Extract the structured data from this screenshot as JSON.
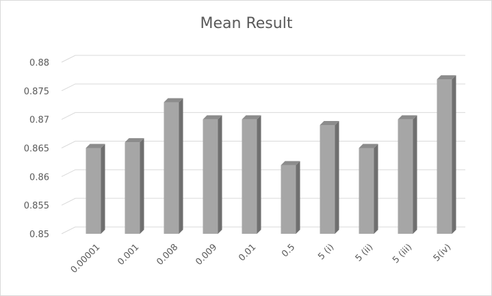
{
  "chart_data": {
    "type": "bar",
    "title": "Mean Result",
    "xlabel": "",
    "ylabel": "",
    "categories": [
      "0.00001",
      "0.001",
      "0.008",
      "0.009",
      "0.01",
      "0.5",
      "5 (i)",
      "5 (ii)",
      "5 (iii)",
      "5(iv)"
    ],
    "values": [
      0.865,
      0.866,
      0.873,
      0.87,
      0.87,
      0.862,
      0.869,
      0.865,
      0.87,
      0.877
    ],
    "ylim": [
      0.85,
      0.88
    ],
    "yticks": [
      "0.85",
      "0.855",
      "0.86",
      "0.865",
      "0.87",
      "0.875",
      "0.88"
    ],
    "ytick_values": [
      0.85,
      0.855,
      0.86,
      0.865,
      0.87,
      0.875,
      0.88
    ],
    "grid": true,
    "legend": "none",
    "style": "3d-column",
    "colors": {
      "bar_front": "#a6a6a6",
      "bar_side": "#6f6f6f",
      "bar_top": "#8c8c8c",
      "grid": "#d9d9d9",
      "text": "#595959"
    }
  }
}
